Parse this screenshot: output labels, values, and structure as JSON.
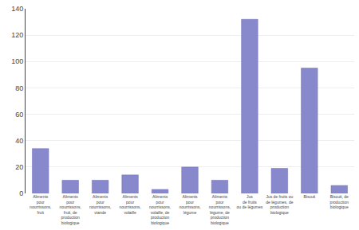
{
  "chart_data": {
    "type": "bar",
    "categories": [
      "Aliments\npour\nnourrissons,\nfruit",
      "Aliments\npour\nnourrissons,\nfruit, de\nproduction\nbiologique",
      "Aliments\npour\nnourrissons,\nviande",
      "Aliments\npour\nnourrissons,\nvolaille",
      "Aliments\npour\nnourrissons,\nvolaille, de\nproduction\nbiologique",
      "Aliments\npour\nnourrissons,\nlégume",
      "Aliments\npour\nnourrissons,\nlégume, de\nproduction\nbiologique",
      "Jus\nde fruits\nou de légumes",
      "Jus de fruits ou\nde légumes, de\nproduction\nbiologique",
      "Biscuit",
      "Biscuit, de\nproduction\nbiologique"
    ],
    "values": [
      34,
      10,
      10,
      14,
      3,
      20,
      10,
      132,
      19,
      95,
      6
    ],
    "color": "#8888cc",
    "ylim": [
      0,
      140
    ],
    "yticks": [
      0,
      20,
      40,
      60,
      80,
      100,
      120,
      140
    ],
    "grid": true
  }
}
